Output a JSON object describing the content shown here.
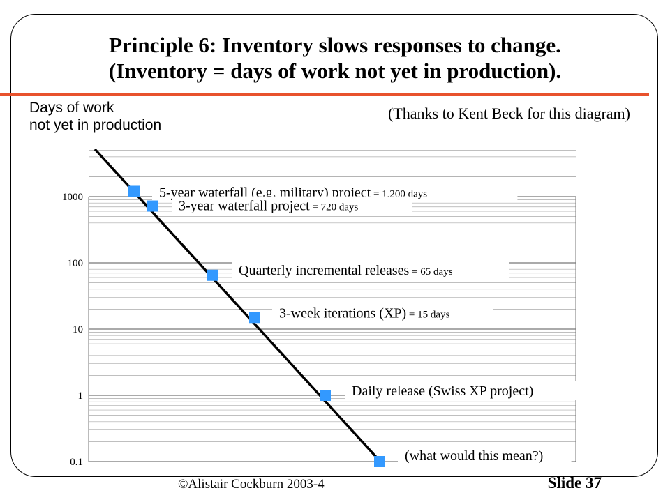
{
  "slide": {
    "title_line1": "Principle 6: Inventory slows responses to change.",
    "title_line2": "(Inventory = days of work not yet in production).",
    "credit": "(Thanks to Kent Beck for this diagram)",
    "footer_copyright": "©Alistair Cockburn 2003-4",
    "footer_slide": "Slide 37",
    "accent_color": "#e8522d",
    "marker_color": "#3399ff"
  },
  "chart_data": {
    "type": "line",
    "ylabel_line1": "Days of work",
    "ylabel_line2": "not yet in production",
    "yscale": "log",
    "yticks": [
      {
        "value": 0.1,
        "label": "0.1"
      },
      {
        "value": 1,
        "label": "1"
      },
      {
        "value": 10,
        "label": "10"
      },
      {
        "value": 100,
        "label": "100"
      },
      {
        "value": 1000,
        "label": "1000"
      }
    ],
    "ylim": [
      0.1,
      4000
    ],
    "points": [
      {
        "main": "5-year waterfall (e.g. military) project",
        "suffix": " = 1,200 days",
        "value": 1200
      },
      {
        "main": "3-year waterfall project",
        "suffix": " = 720 days",
        "value": 720
      },
      {
        "main": "Quarterly incremental releases",
        "suffix": " = 65 days",
        "value": 65
      },
      {
        "main": "3-week iterations (XP)",
        "suffix": " = 15 days",
        "value": 15
      },
      {
        "main": "Daily release (Swiss XP project)",
        "suffix": "",
        "value": 1
      },
      {
        "main": "(what would this mean?)",
        "suffix": "",
        "value": 0.1
      }
    ]
  }
}
